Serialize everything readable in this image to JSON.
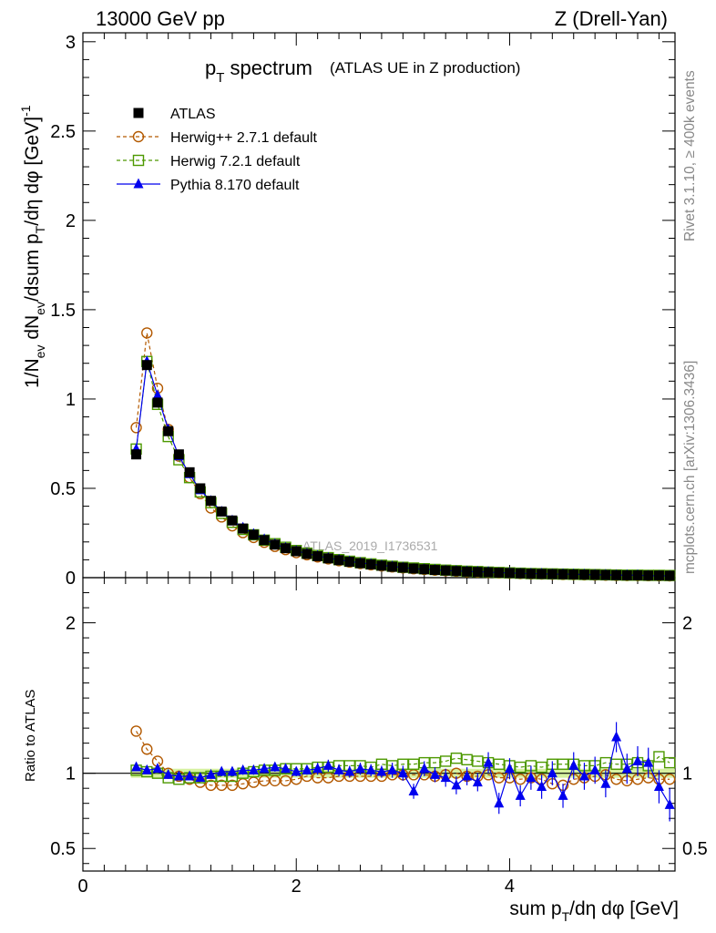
{
  "header": {
    "energy": "13000 GeV pp",
    "process": "Z (Drell-Yan)"
  },
  "side": {
    "rivet": "Rivet 3.1.10, ≥ 400k events",
    "mcplots": "mcplots.cern.ch [arXiv:1306.3436]"
  },
  "chart_data": {
    "type": "scatter",
    "title": "pT spectrum",
    "title_main": "p",
    "title_sub": "T",
    "title_rest": " spectrum",
    "title_paren": "(ATLAS UE in Z production)",
    "watermark": "ATLAS_2019_I1736531",
    "ylabel": "1/Nev dNev/dsum pT/dη dφ [GeV]^-1",
    "ylabel_parts": {
      "a": "1/N",
      "a_sub": "ev",
      "b": " dN",
      "b_sub": "ev",
      "c": "/dsum p",
      "c_sub": "T",
      "d": "/dη dφ  [GeV]",
      "d_sup": "-1"
    },
    "ratio_ylabel": "Ratio to ATLAS",
    "xlabel": "sum pT/dη dφ [GeV]",
    "xlabel_parts": {
      "a": "sum p",
      "a_sub": "T",
      "b": "/dη dφ [GeV]"
    },
    "xlim": [
      0,
      5.55
    ],
    "ylim": [
      0,
      3.05
    ],
    "ratio_ylim": [
      0.35,
      2.3
    ],
    "main_yticks": [
      {
        "v": 0,
        "label": "0"
      },
      {
        "v": 0.5,
        "label": "0.5"
      },
      {
        "v": 1,
        "label": "1"
      },
      {
        "v": 1.5,
        "label": "1.5"
      },
      {
        "v": 2,
        "label": "2"
      },
      {
        "v": 2.5,
        "label": "2.5"
      },
      {
        "v": 3,
        "label": "3"
      }
    ],
    "ratio_yticks": [
      {
        "v": 0.5,
        "label": "0.5"
      },
      {
        "v": 1,
        "label": "1"
      },
      {
        "v": 2,
        "label": "2"
      }
    ],
    "xticks": [
      {
        "v": 0,
        "label": "0"
      },
      {
        "v": 2,
        "label": "2"
      },
      {
        "v": 4,
        "label": "4"
      }
    ],
    "x": [
      0.5,
      0.6,
      0.7,
      0.8,
      0.9,
      1.0,
      1.1,
      1.2,
      1.3,
      1.4,
      1.5,
      1.6,
      1.7,
      1.8,
      1.9,
      2.0,
      2.1,
      2.2,
      2.3,
      2.4,
      2.5,
      2.6,
      2.7,
      2.8,
      2.9,
      3.0,
      3.1,
      3.2,
      3.3,
      3.4,
      3.5,
      3.6,
      3.7,
      3.8,
      3.9,
      4.0,
      4.1,
      4.2,
      4.3,
      4.4,
      4.5,
      4.6,
      4.7,
      4.8,
      4.9,
      5.0,
      5.1,
      5.2,
      5.3,
      5.4,
      5.5
    ],
    "series": [
      {
        "name": "ATLAS",
        "color": "#000000",
        "marker": "square-filled",
        "values": [
          0.69,
          1.19,
          0.98,
          0.82,
          0.69,
          0.59,
          0.5,
          0.43,
          0.37,
          0.32,
          0.275,
          0.24,
          0.21,
          0.185,
          0.165,
          0.148,
          0.133,
          0.12,
          0.108,
          0.098,
          0.089,
          0.081,
          0.074,
          0.067,
          0.061,
          0.056,
          0.051,
          0.047,
          0.043,
          0.04,
          0.037,
          0.034,
          0.032,
          0.03,
          0.028,
          0.026,
          0.024,
          0.022,
          0.021,
          0.02,
          0.019,
          0.018,
          0.017,
          0.016,
          0.015,
          0.014,
          0.013,
          0.013,
          0.012,
          0.012,
          0.011
        ],
        "ratio": [
          1,
          1,
          1,
          1,
          1,
          1,
          1,
          1,
          1,
          1,
          1,
          1,
          1,
          1,
          1,
          1,
          1,
          1,
          1,
          1,
          1,
          1,
          1,
          1,
          1,
          1,
          1,
          1,
          1,
          1,
          1,
          1,
          1,
          1,
          1,
          1,
          1,
          1,
          1,
          1,
          1,
          1,
          1,
          1,
          1,
          1,
          1,
          1,
          1,
          1,
          1
        ]
      },
      {
        "name": "Herwig++ 2.7.1 default",
        "color": "#b35900",
        "marker": "circle-open",
        "dash": "4,3",
        "values": [
          0.84,
          1.37,
          1.06,
          0.83,
          0.68,
          0.56,
          0.47,
          0.39,
          0.34,
          0.29,
          0.252,
          0.225,
          0.198,
          0.175,
          0.157,
          0.14,
          0.128,
          0.116,
          0.105,
          0.095,
          0.087,
          0.079,
          0.072,
          0.066,
          0.06,
          0.055,
          0.05,
          0.046,
          0.042,
          0.039,
          0.036,
          0.033,
          0.031,
          0.029,
          0.027,
          0.025,
          0.023,
          0.021,
          0.02,
          0.019,
          0.018,
          0.017,
          0.016,
          0.015,
          0.014,
          0.013,
          0.012,
          0.012,
          0.011,
          0.011,
          0.01
        ],
        "ratio": [
          1.28,
          1.16,
          1.08,
          1.0,
          0.98,
          0.96,
          0.94,
          0.92,
          0.92,
          0.92,
          0.93,
          0.94,
          0.95,
          0.95,
          0.95,
          0.96,
          0.98,
          0.97,
          0.97,
          0.98,
          0.98,
          0.98,
          0.98,
          0.98,
          0.99,
          0.99,
          0.99,
          0.99,
          0.98,
          0.99,
          1.0,
          0.98,
          0.98,
          0.99,
          0.97,
          0.97,
          0.96,
          0.97,
          0.96,
          0.93,
          0.92,
          0.96,
          0.97,
          0.98,
          0.99,
          0.96,
          0.95,
          0.96,
          0.97,
          0.96,
          0.96
        ]
      },
      {
        "name": "Herwig 7.2.1 default",
        "color": "#4d9900",
        "marker": "square-open",
        "dash": "4,3",
        "values": [
          0.72,
          1.21,
          0.97,
          0.79,
          0.66,
          0.56,
          0.48,
          0.42,
          0.36,
          0.31,
          0.27,
          0.24,
          0.21,
          0.19,
          0.17,
          0.152,
          0.137,
          0.124,
          0.112,
          0.101,
          0.092,
          0.084,
          0.077,
          0.07,
          0.064,
          0.058,
          0.054,
          0.05,
          0.046,
          0.042,
          0.039,
          0.036,
          0.034,
          0.031,
          0.029,
          0.027,
          0.025,
          0.023,
          0.022,
          0.021,
          0.02,
          0.019,
          0.018,
          0.017,
          0.016,
          0.015,
          0.014,
          0.014,
          0.013,
          0.013,
          0.012
        ],
        "ratio": [
          1.02,
          1.01,
          1.0,
          0.97,
          0.96,
          0.97,
          0.97,
          0.98,
          0.98,
          0.98,
          1.0,
          1.01,
          1.02,
          1.02,
          1.03,
          1.03,
          1.03,
          1.04,
          1.04,
          1.05,
          1.05,
          1.05,
          1.04,
          1.06,
          1.05,
          1.06,
          1.06,
          1.07,
          1.07,
          1.08,
          1.1,
          1.09,
          1.08,
          1.07,
          1.06,
          1.05,
          1.04,
          1.05,
          1.04,
          1.06,
          1.06,
          1.06,
          1.05,
          1.05,
          1.07,
          1.06,
          1.06,
          1.07,
          1.05,
          1.11,
          1.07
        ]
      },
      {
        "name": "Pythia 8.170 default",
        "color": "#0000ee",
        "marker": "triangle-filled",
        "values": [
          0.72,
          1.21,
          1.02,
          0.83,
          0.68,
          0.58,
          0.49,
          0.43,
          0.37,
          0.32,
          0.28,
          0.245,
          0.215,
          0.188,
          0.167,
          0.15,
          0.135,
          0.122,
          0.11,
          0.1,
          0.091,
          0.083,
          0.076,
          0.069,
          0.063,
          0.057,
          0.05,
          0.048,
          0.044,
          0.04,
          0.038,
          0.035,
          0.033,
          0.032,
          0.027,
          0.027,
          0.023,
          0.023,
          0.022,
          0.019,
          0.02,
          0.019,
          0.018,
          0.016,
          0.016,
          0.014,
          0.014,
          0.014,
          0.011,
          0.011,
          0.01
        ],
        "ratio": [
          1.04,
          1.02,
          1.03,
          0.99,
          0.98,
          0.98,
          0.97,
          0.99,
          1.01,
          1.01,
          1.02,
          1.02,
          1.03,
          1.04,
          1.03,
          1.01,
          1.02,
          1.03,
          1.05,
          1.02,
          1.01,
          1.03,
          1.02,
          1.01,
          1.02,
          1.0,
          0.88,
          1.03,
          0.99,
          0.97,
          0.92,
          0.98,
          0.94,
          1.07,
          0.8,
          1.03,
          0.85,
          0.97,
          0.91,
          1.0,
          0.85,
          1.05,
          0.98,
          1.02,
          0.93,
          1.24,
          1.03,
          1.08,
          1.07,
          0.91,
          0.79
        ],
        "ratio_err": [
          0.02,
          0.02,
          0.02,
          0.02,
          0.02,
          0.02,
          0.02,
          0.02,
          0.03,
          0.03,
          0.03,
          0.03,
          0.03,
          0.03,
          0.03,
          0.03,
          0.03,
          0.04,
          0.04,
          0.04,
          0.04,
          0.04,
          0.04,
          0.04,
          0.05,
          0.05,
          0.05,
          0.05,
          0.05,
          0.06,
          0.06,
          0.06,
          0.06,
          0.07,
          0.07,
          0.07,
          0.07,
          0.08,
          0.08,
          0.08,
          0.08,
          0.09,
          0.09,
          0.09,
          0.09,
          0.1,
          0.1,
          0.1,
          0.1,
          0.11,
          0.11
        ]
      }
    ],
    "atlas_band": [
      0.97,
      1.03
    ]
  }
}
